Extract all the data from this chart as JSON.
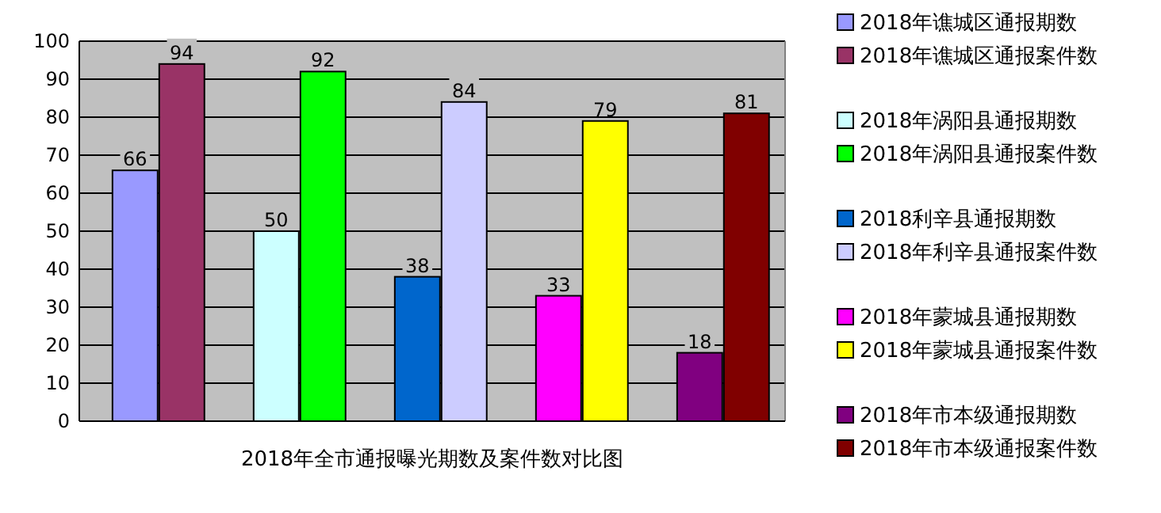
{
  "chart_data": {
    "type": "bar",
    "xlabel": "2018年全市通报曝光期数及案件数对比图",
    "categories": [
      null,
      null,
      null,
      null,
      null
    ],
    "ylim": [
      0,
      100
    ],
    "yticks": [
      0,
      10,
      20,
      30,
      40,
      50,
      60,
      70,
      80,
      90,
      100
    ],
    "grid": "y",
    "legend": "right",
    "data_labels": true,
    "series": [
      {
        "name": "2018年谯城区通报期数",
        "color": "#9999ff",
        "values": [
          66,
          null,
          null,
          null,
          null
        ]
      },
      {
        "name": "2018年谯城区通报案件数",
        "color": "#993366",
        "values": [
          94,
          null,
          null,
          null,
          null
        ]
      },
      {
        "name": "2018年涡阳县通报期数",
        "color": "#ccffff",
        "values": [
          null,
          50,
          null,
          null,
          null
        ]
      },
      {
        "name": "2018年涡阳县通报案件数",
        "color": "#00ff00",
        "values": [
          null,
          92,
          null,
          null,
          null
        ]
      },
      {
        "name": "2018利辛县通报期数",
        "color": "#0066cc",
        "values": [
          null,
          null,
          38,
          null,
          null
        ]
      },
      {
        "name": "2018年利辛县通报案件数",
        "color": "#ccccff",
        "values": [
          null,
          null,
          84,
          null,
          null
        ]
      },
      {
        "name": "2018年蒙城县通报期数",
        "color": "#ff00ff",
        "values": [
          null,
          null,
          null,
          33,
          null
        ]
      },
      {
        "name": "2018年蒙城县通报案件数",
        "color": "#ffff00",
        "values": [
          null,
          null,
          null,
          79,
          null
        ]
      },
      {
        "name": "2018年市本级通报期数",
        "color": "#800080",
        "values": [
          null,
          null,
          null,
          null,
          18
        ]
      },
      {
        "name": "2018年市本级通报案件数",
        "color": "#800000",
        "values": [
          null,
          null,
          null,
          null,
          81
        ]
      }
    ]
  }
}
